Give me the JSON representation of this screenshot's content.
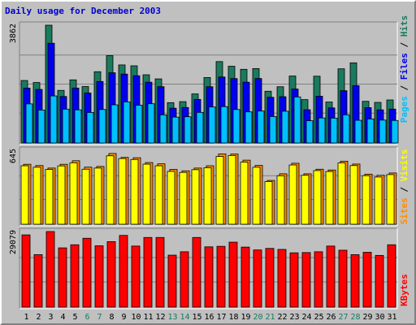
{
  "chart_data": [
    {
      "type": "bar",
      "panel": "top",
      "categories": [
        "1",
        "2",
        "3",
        "4",
        "5",
        "6",
        "7",
        "8",
        "9",
        "10",
        "11",
        "12",
        "13",
        "14",
        "15",
        "16",
        "17",
        "18",
        "19",
        "20",
        "21",
        "22",
        "23",
        "24",
        "25",
        "26",
        "27",
        "28",
        "29",
        "30",
        "31"
      ],
      "ymax_label": "3862",
      "ylim": [
        0,
        3862
      ],
      "grid": true,
      "series": [
        {
          "name": "Hits",
          "color": "#1a7a5e",
          "values": [
            2049,
            1983,
            3862,
            1725,
            2070,
            1851,
            2337,
            2863,
            2559,
            2530,
            2236,
            2102,
            1323,
            1356,
            1609,
            2146,
            2669,
            2516,
            2415,
            2439,
            1697,
            1844,
            2196,
            1422,
            2190,
            1344,
            2432,
            2628,
            1366,
            1331,
            1411
          ]
        },
        {
          "name": "Files",
          "color": "#0000ee",
          "values": [
            1800,
            1756,
            3270,
            1525,
            1801,
            1640,
            2016,
            2303,
            2259,
            2205,
            1993,
            1847,
            1141,
            1164,
            1429,
            1845,
            2163,
            2112,
            1994,
            2114,
            1498,
            1518,
            1769,
            1090,
            1532,
            1151,
            1715,
            1878,
            1159,
            1087,
            1111
          ]
        },
        {
          "name": "Pages",
          "color": "#00bfff",
          "values": [
            1282,
            1081,
            1543,
            1110,
            1087,
            1002,
            1097,
            1251,
            1348,
            1240,
            1287,
            922,
            849,
            861,
            1004,
            1181,
            1193,
            1097,
            1021,
            1048,
            867,
            1042,
            1511,
            730,
            821,
            816,
            924,
            745,
            789,
            751,
            739
          ]
        }
      ]
    },
    {
      "type": "bar",
      "panel": "middle",
      "categories": [
        "1",
        "2",
        "3",
        "4",
        "5",
        "6",
        "7",
        "8",
        "9",
        "10",
        "11",
        "12",
        "13",
        "14",
        "15",
        "16",
        "17",
        "18",
        "19",
        "20",
        "21",
        "22",
        "23",
        "24",
        "25",
        "26",
        "27",
        "28",
        "29",
        "30",
        "31"
      ],
      "ymax_label": "645",
      "ylim": [
        0,
        645
      ],
      "grid": true,
      "series": [
        {
          "name": "Sites",
          "color": "#ff8c00",
          "values": [
            523,
            512,
            490,
            523,
            554,
            498,
            504,
            617,
            583,
            580,
            538,
            527,
            478,
            466,
            490,
            510,
            613,
            612,
            559,
            513,
            382,
            440,
            532,
            440,
            480,
            473,
            550,
            525,
            437,
            427,
            447
          ]
        },
        {
          "name": "Visits",
          "color": "#ffff00",
          "values": [
            510,
            497,
            478,
            509,
            536,
            480,
            490,
            597,
            573,
            565,
            524,
            510,
            461,
            452,
            476,
            493,
            591,
            600,
            542,
            497,
            373,
            423,
            517,
            427,
            468,
            460,
            535,
            512,
            424,
            412,
            433
          ]
        }
      ]
    },
    {
      "type": "bar",
      "panel": "bottom",
      "categories": [
        "1",
        "2",
        "3",
        "4",
        "5",
        "6",
        "7",
        "8",
        "9",
        "10",
        "11",
        "12",
        "13",
        "14",
        "15",
        "16",
        "17",
        "18",
        "19",
        "20",
        "21",
        "22",
        "23",
        "24",
        "25",
        "26",
        "27",
        "28",
        "29",
        "30",
        "31"
      ],
      "ymax_label": "29079",
      "ylim": [
        0,
        29079
      ],
      "grid": true,
      "series": [
        {
          "name": "KBytes",
          "color": "#ff0000",
          "values": [
            27800,
            20200,
            29079,
            22800,
            24000,
            26500,
            23600,
            25200,
            27600,
            23500,
            26800,
            26800,
            20000,
            21300,
            26800,
            23200,
            23400,
            25000,
            23100,
            22000,
            22600,
            22200,
            20900,
            21000,
            21300,
            23500,
            21900,
            20200,
            21100,
            19900,
            24000
          ]
        }
      ]
    }
  ],
  "ui": {
    "title": "Daily usage for December 2003",
    "legend_top": {
      "pages": "Pages",
      "files": "Files",
      "hits": "Hits",
      "sep": " / "
    },
    "legend_mid": {
      "sites": "Sites",
      "visits": "Visits",
      "sep": " / "
    },
    "legend_bot": {
      "kbytes": "KBytes"
    },
    "colors": {
      "background": "#c0c0c0",
      "plot": "#c0c0c0",
      "grid": "#808080",
      "title": "#0000cc",
      "weekday_label": "#000000",
      "weekend_label": "#1a7a5e"
    },
    "weekend_days": [
      6,
      7,
      13,
      14,
      20,
      21,
      27,
      28
    ]
  }
}
